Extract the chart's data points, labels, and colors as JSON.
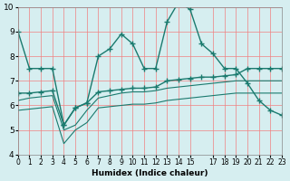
{
  "line1_x": [
    0,
    1,
    2,
    3,
    4,
    5,
    6,
    7,
    8,
    9,
    10,
    11,
    12,
    13,
    14,
    15,
    16,
    17,
    18,
    19,
    20,
    21,
    22,
    23
  ],
  "line1_y": [
    9.0,
    7.5,
    7.5,
    7.5,
    5.2,
    5.9,
    6.1,
    8.0,
    8.3,
    8.9,
    8.5,
    7.5,
    7.5,
    9.4,
    10.2,
    9.9,
    8.5,
    8.1,
    7.5,
    7.5,
    6.9,
    6.2,
    5.8,
    5.6
  ],
  "line2_x": [
    0,
    1,
    2,
    3,
    4,
    5,
    6,
    7,
    8,
    9,
    10,
    11,
    12,
    13,
    14,
    15,
    16,
    17,
    18,
    19,
    20,
    21,
    22,
    23
  ],
  "line2_y": [
    6.5,
    6.5,
    6.55,
    6.6,
    5.2,
    5.9,
    6.1,
    6.55,
    6.6,
    6.65,
    6.7,
    6.7,
    6.75,
    7.0,
    7.05,
    7.1,
    7.15,
    7.15,
    7.2,
    7.25,
    7.5,
    7.5,
    7.5,
    7.5
  ],
  "line3_x": [
    0,
    1,
    2,
    3,
    4,
    5,
    6,
    7,
    8,
    9,
    10,
    11,
    12,
    13,
    14,
    15,
    16,
    17,
    18,
    19,
    20,
    21,
    22,
    23
  ],
  "line3_y": [
    6.2,
    6.3,
    6.35,
    6.4,
    5.0,
    5.2,
    5.8,
    6.3,
    6.4,
    6.5,
    6.55,
    6.55,
    6.6,
    6.7,
    6.75,
    6.8,
    6.85,
    6.9,
    6.95,
    7.0,
    7.0,
    7.0,
    7.0,
    7.0
  ],
  "line4_x": [
    0,
    1,
    2,
    3,
    4,
    5,
    6,
    7,
    8,
    9,
    10,
    11,
    12,
    13,
    14,
    15,
    16,
    17,
    18,
    19,
    20,
    21,
    22,
    23
  ],
  "line4_y": [
    5.8,
    5.85,
    5.9,
    5.95,
    4.45,
    5.0,
    5.3,
    5.9,
    5.95,
    6.0,
    6.05,
    6.05,
    6.1,
    6.2,
    6.25,
    6.3,
    6.35,
    6.4,
    6.45,
    6.5,
    6.5,
    6.5,
    6.5,
    6.5
  ],
  "color": "#1a7a6e",
  "bg_color": "#d6eef0",
  "grid_color": "#f08080",
  "xlabel": "Humidex (Indice chaleur)",
  "xlim": [
    0,
    23
  ],
  "ylim": [
    4,
    10
  ],
  "yticks": [
    4,
    5,
    6,
    7,
    8,
    9,
    10
  ],
  "xticks": [
    0,
    1,
    2,
    3,
    4,
    5,
    6,
    7,
    8,
    9,
    10,
    11,
    12,
    13,
    14,
    15,
    17,
    18,
    19,
    20,
    21,
    22,
    23
  ],
  "xtick_labels": [
    "0",
    "1",
    "2",
    "3",
    "4",
    "5",
    "6",
    "7",
    "8",
    "9",
    "10",
    "11",
    "12",
    "13",
    "14",
    "15",
    "17",
    "18",
    "19",
    "20",
    "21",
    "22",
    "23"
  ]
}
